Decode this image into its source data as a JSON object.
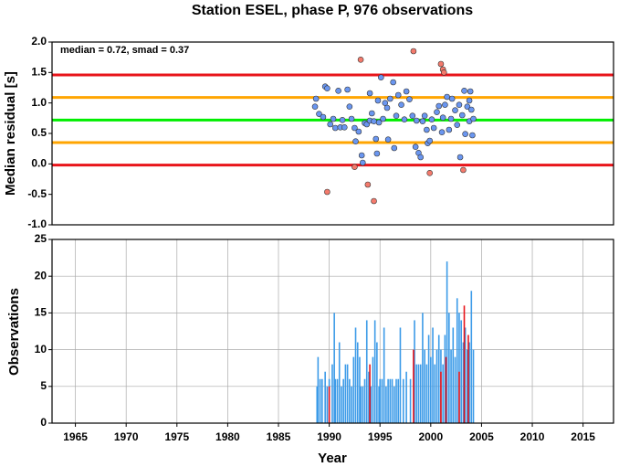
{
  "chart_data": [
    {
      "type": "scatter",
      "title": "Station ESEL, phase P, 976 observations",
      "y_label": "Median residual [s]",
      "annotation": "median = 0.72, smad = 0.37",
      "xlim": [
        1962.7,
        2018
      ],
      "ylim": [
        -1,
        2
      ],
      "yticks": [
        {
          "value": -1,
          "label": "-1.0"
        },
        -0.5,
        {
          "value": 0,
          "label": "0.0"
        },
        0.5,
        {
          "value": 1,
          "label": "1.0"
        },
        1.5,
        {
          "value": 2,
          "label": "2.0"
        }
      ],
      "grid": false,
      "hlines": [
        {
          "value": 1.46,
          "color": "#e8141a"
        },
        {
          "value": 1.09,
          "color": "#ffa500"
        },
        {
          "value": 0.72,
          "color": "#00ee00"
        },
        {
          "value": 0.35,
          "color": "#ffa500"
        },
        {
          "value": -0.02,
          "color": "#e8141a"
        }
      ],
      "series": [
        {
          "color": "#6a96f0",
          "x": [
            1988.7,
            1988.6,
            1989.0,
            1989.6,
            1989.8,
            1989.4,
            1990.1,
            1990.4,
            1990.6,
            1990.9,
            1991.1,
            1991.3,
            1991.5,
            1991.8,
            1992.0,
            1992.2,
            1992.5,
            1992.6,
            1992.9,
            1993.2,
            1993.3,
            1993.5,
            1993.7,
            1994.0,
            1994.0,
            1994.2,
            1994.4,
            1994.6,
            1994.7,
            1994.8,
            1994.9,
            1995.1,
            1995.3,
            1995.5,
            1995.7,
            1995.8,
            1996.0,
            1996.3,
            1996.4,
            1996.6,
            1996.8,
            1997.1,
            1997.4,
            1997.6,
            1997.9,
            1998.2,
            1998.5,
            1998.6,
            1998.8,
            1999.0,
            1999.2,
            1999.4,
            1999.6,
            1999.7,
            1999.9,
            2000.1,
            2000.3,
            2000.6,
            2000.8,
            2001.1,
            2001.2,
            2001.4,
            2001.6,
            2001.8,
            2002.0,
            2002.1,
            2002.4,
            2002.6,
            2002.8,
            2002.9,
            2003.1,
            2003.3,
            2003.4,
            2003.6,
            2003.8,
            2003.8,
            2004.0,
            2004.1,
            2004.2,
            2003.9
          ],
          "values": [
            1.07,
            0.94,
            0.82,
            1.27,
            1.24,
            0.77,
            0.65,
            0.74,
            0.59,
            1.2,
            0.6,
            0.72,
            0.6,
            1.22,
            0.94,
            0.74,
            0.59,
            0.37,
            0.53,
            0.14,
            0.02,
            0.67,
            0.65,
            0.71,
            1.16,
            0.83,
            0.7,
            0.41,
            0.17,
            1.04,
            0.68,
            1.42,
            0.74,
            1.0,
            0.92,
            0.4,
            1.07,
            1.34,
            0.26,
            0.79,
            1.13,
            0.97,
            0.73,
            1.19,
            1.06,
            0.79,
            0.28,
            0.71,
            0.18,
            0.11,
            0.7,
            0.79,
            0.56,
            0.34,
            0.38,
            0.73,
            0.59,
            0.85,
            0.95,
            0.52,
            0.76,
            0.97,
            1.1,
            0.56,
            0.74,
            1.07,
            0.88,
            0.64,
            0.97,
            0.11,
            0.8,
            1.2,
            0.49,
            0.94,
            0.7,
            1.04,
            0.89,
            0.47,
            0.74,
            1.19
          ]
        },
        {
          "color": "#f47a6c",
          "x": [
            1993.1,
            1993.8,
            1992.5,
            1989.8,
            1994.4,
            1998.3,
            2001.0,
            2001.2,
            2001.3,
            1999.9,
            2003.2
          ],
          "values": [
            1.71,
            -0.34,
            -0.05,
            -0.46,
            -0.61,
            1.85,
            1.64,
            1.55,
            1.5,
            -0.15,
            -0.1
          ]
        }
      ]
    },
    {
      "type": "bar",
      "y_label": "Observations",
      "x_label": "Year",
      "xlim": [
        1962.7,
        2018
      ],
      "ylim": [
        0,
        25
      ],
      "xticks": [
        1965,
        1970,
        1975,
        1980,
        1985,
        1990,
        1995,
        2000,
        2005,
        2010,
        2015
      ],
      "yticks": [
        0,
        5,
        10,
        15,
        20,
        25
      ],
      "grid": true,
      "series": [
        {
          "color": "#3c9be8",
          "x": [
            1988.8,
            1988.9,
            1989.1,
            1989.3,
            1989.6,
            1989.8,
            1990.0,
            1990.3,
            1990.5,
            1990.6,
            1990.8,
            1991.0,
            1991.2,
            1991.4,
            1991.6,
            1991.8,
            1992.0,
            1992.2,
            1992.4,
            1992.6,
            1992.8,
            1993.0,
            1993.1,
            1993.3,
            1993.5,
            1993.7,
            1993.9,
            1994.1,
            1994.3,
            1994.5,
            1994.7,
            1994.9,
            1995.0,
            1995.2,
            1995.4,
            1995.6,
            1995.8,
            1996.0,
            1996.2,
            1996.4,
            1996.6,
            1996.8,
            1997.0,
            1997.3,
            1997.6,
            1998.0,
            1998.4,
            1998.6,
            1998.8,
            1999.0,
            1999.2,
            1999.4,
            1999.6,
            1999.8,
            2000.0,
            2000.2,
            2000.4,
            2000.6,
            2000.8,
            2001.0,
            2001.2,
            2001.4,
            2001.6,
            2001.8,
            2002.0,
            2002.2,
            2002.4,
            2002.6,
            2002.8,
            2003.0,
            2003.2,
            2003.4,
            2003.6,
            2003.8,
            2004.0,
            2004.2
          ],
          "values": [
            5,
            9,
            6,
            6,
            7,
            5,
            6,
            8,
            15,
            6,
            6,
            11,
            5,
            6,
            8,
            8,
            6,
            5,
            9,
            13,
            11,
            9,
            5,
            5,
            6,
            14,
            7,
            5,
            9,
            14,
            11,
            5,
            6,
            6,
            13,
            5,
            6,
            6,
            6,
            5,
            6,
            6,
            13,
            6,
            7,
            6,
            14,
            8,
            8,
            8,
            15,
            10,
            8,
            12,
            9,
            13,
            8,
            10,
            12,
            10,
            8,
            12,
            22,
            15,
            10,
            13,
            9,
            17,
            15,
            14,
            11,
            13,
            10,
            11,
            18,
            10
          ]
        },
        {
          "color": "#e8141a",
          "x": [
            1990.0,
            1994.0,
            1998.3,
            2001.0,
            2001.5,
            2002.8,
            2003.3,
            2003.7
          ],
          "values": [
            5,
            8,
            10,
            7,
            9,
            7,
            16,
            12
          ]
        }
      ]
    }
  ]
}
